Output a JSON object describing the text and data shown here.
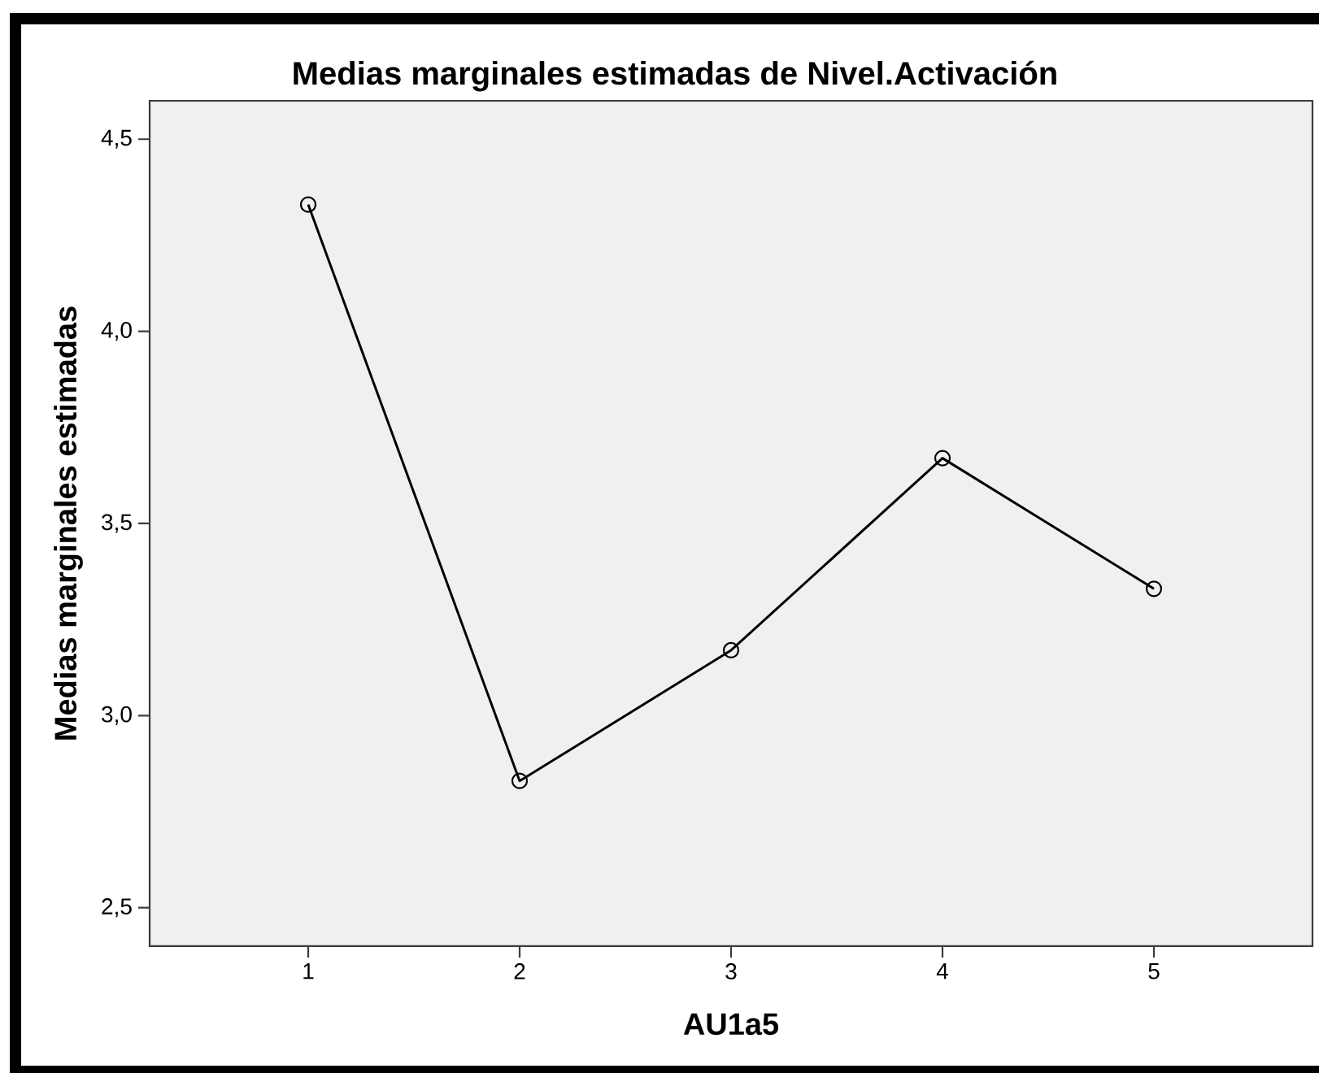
{
  "chart_data": {
    "type": "line",
    "title": "Medias marginales estimadas de Nivel.Activación",
    "xlabel": "AU1a5",
    "ylabel": "Medias marginales estimadas",
    "categories": [
      "1",
      "2",
      "3",
      "4",
      "5"
    ],
    "series": [
      {
        "color": "#000000",
        "values": [
          4.33,
          2.83,
          3.17,
          3.67,
          3.33
        ]
      }
    ],
    "ylim": [
      2.4,
      4.6
    ],
    "yticks": [
      {
        "value": 2.5,
        "label": "2,5"
      },
      {
        "value": 3.0,
        "label": "3,0"
      },
      {
        "value": 3.5,
        "label": "3,5"
      },
      {
        "value": 4.0,
        "label": "4,0"
      },
      {
        "value": 4.5,
        "label": "4,5"
      }
    ],
    "marker": "circle",
    "line_style": "solid"
  }
}
